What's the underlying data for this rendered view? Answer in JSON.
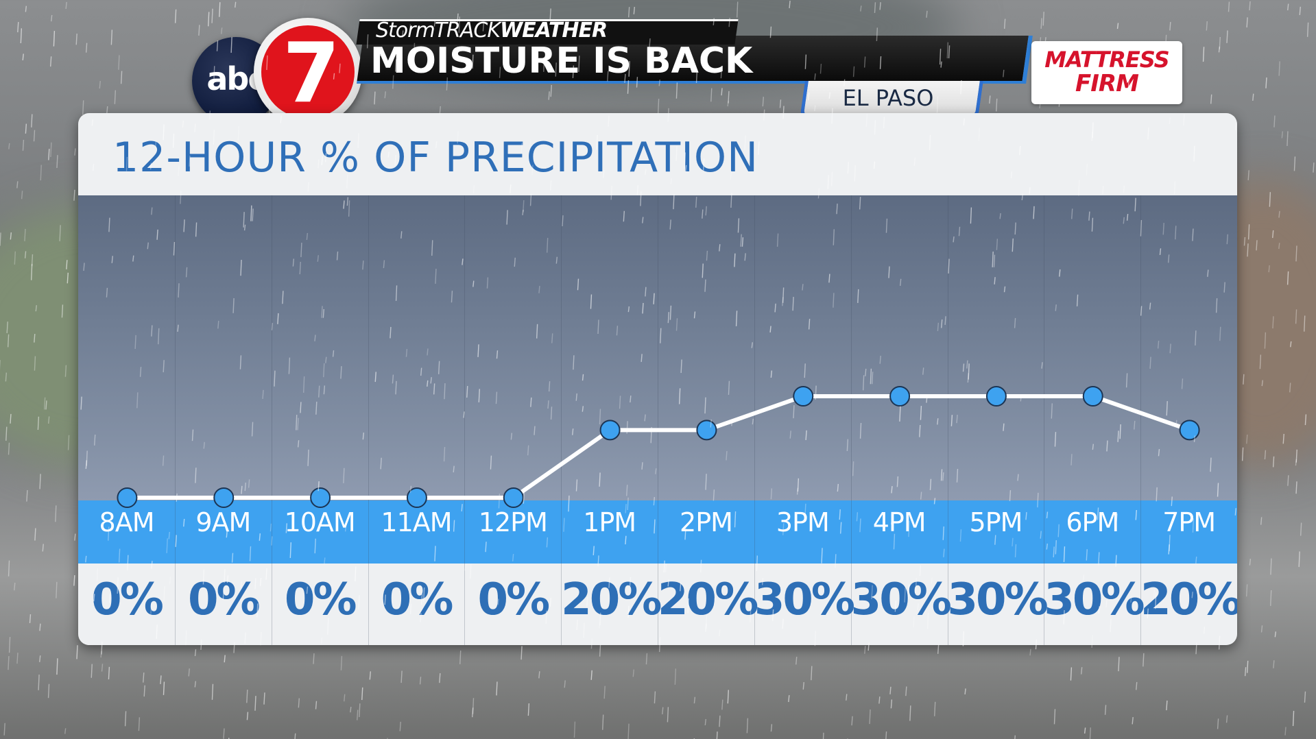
{
  "header": {
    "brand_left": "StormTRACK",
    "brand_right": "WEATHER",
    "headline": "MOISTURE IS BACK",
    "location": "EL PASO",
    "station_logo_text": "abc",
    "station_logo_number": "7"
  },
  "sponsor": {
    "line1": "MATTRESS",
    "line2": "FIRM"
  },
  "chart_data": {
    "type": "line",
    "title": "12-HOUR % OF PRECIPITATION",
    "categories": [
      "8AM",
      "9AM",
      "10AM",
      "11AM",
      "12PM",
      "1PM",
      "2PM",
      "3PM",
      "4PM",
      "5PM",
      "6PM",
      "7PM"
    ],
    "values": [
      0,
      0,
      0,
      0,
      0,
      20,
      20,
      30,
      30,
      30,
      30,
      20
    ],
    "value_labels": [
      "0%",
      "0%",
      "0%",
      "0%",
      "0%",
      "20%",
      "20%",
      "30%",
      "30%",
      "30%",
      "30%",
      "20%"
    ],
    "ylim": [
      0,
      100
    ],
    "grid": false,
    "colors": {
      "line": "#ffffff",
      "point": "#3ea2f0",
      "band": "#3ea2f0",
      "title": "#2f6fb8"
    }
  }
}
